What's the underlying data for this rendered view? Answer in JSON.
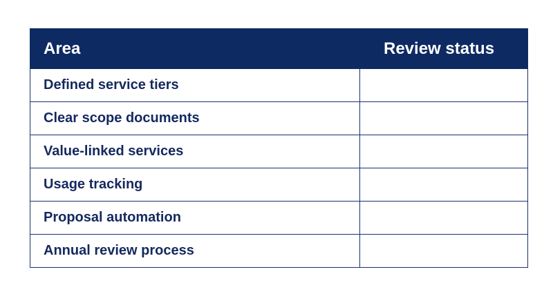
{
  "table": {
    "headers": {
      "area": "Area",
      "review_status": "Review status"
    },
    "rows": [
      {
        "area": "Defined service tiers",
        "review_status": ""
      },
      {
        "area": "Clear scope documents",
        "review_status": ""
      },
      {
        "area": "Value-linked services",
        "review_status": ""
      },
      {
        "area": "Usage tracking",
        "review_status": ""
      },
      {
        "area": "Proposal automation",
        "review_status": ""
      },
      {
        "area": "Annual review process",
        "review_status": ""
      }
    ]
  },
  "colors": {
    "header_background": "#0e2a63",
    "header_text": "#ffffff",
    "body_text": "#14295e",
    "border": "#1b2f6e"
  }
}
